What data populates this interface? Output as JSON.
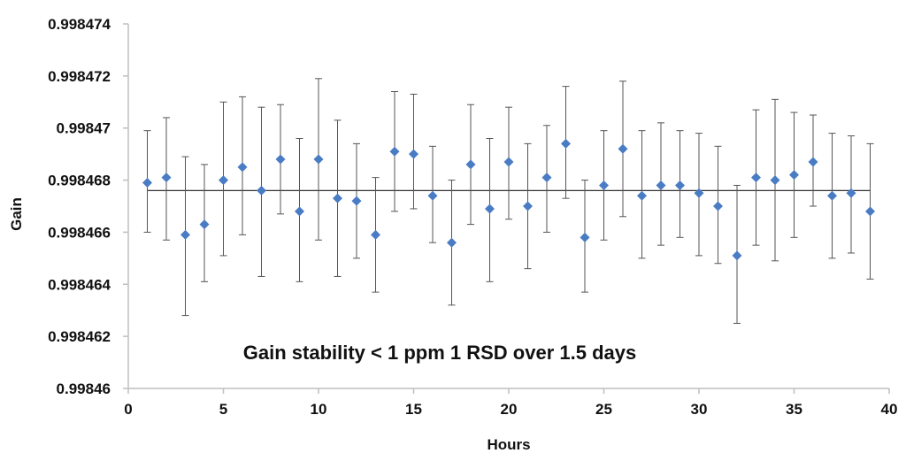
{
  "chart_data": {
    "type": "scatter",
    "title": "",
    "xlabel": "Hours",
    "ylabel": "Gain",
    "xlim": [
      0,
      40
    ],
    "ylim": [
      0.99846,
      0.998474
    ],
    "x_ticks": [
      0,
      5,
      10,
      15,
      20,
      25,
      30,
      35,
      40
    ],
    "y_ticks": [
      0.99846,
      0.998462,
      0.998464,
      0.998466,
      0.998468,
      0.99847,
      0.998472,
      0.998474
    ],
    "x_tick_labels": [
      "0",
      "5",
      "10",
      "15",
      "20",
      "25",
      "30",
      "35",
      "40"
    ],
    "y_tick_labels": [
      "0.99846",
      "0.998462",
      "0.998464",
      "0.998466",
      "0.998468",
      "0.99847",
      "0.998472",
      "0.998474"
    ],
    "grid": false,
    "legend": "none",
    "annotation": "Gain stability < 1 ppm 1 RSD over 1.5 days",
    "mean_line": 0.9984676,
    "colors": {
      "marker": "#4a7cc4",
      "error_bar": "#555555",
      "mean_line": "#333333",
      "axis": "#bfbfbf"
    },
    "series": [
      {
        "x": [
          1,
          2,
          3,
          4,
          5,
          6,
          7,
          8,
          9,
          10,
          11,
          12,
          13,
          14,
          15,
          16,
          17,
          18,
          19,
          20,
          21,
          22,
          23,
          24,
          25,
          26,
          27,
          28,
          29,
          30,
          31,
          32,
          33,
          34,
          35,
          36,
          37,
          38,
          39
        ],
        "y": [
          0.9984679,
          0.9984681,
          0.9984659,
          0.9984663,
          0.998468,
          0.9984685,
          0.9984676,
          0.9984688,
          0.9984668,
          0.9984688,
          0.9984673,
          0.9984672,
          0.9984659,
          0.9984691,
          0.998469,
          0.9984674,
          0.9984656,
          0.9984686,
          0.9984669,
          0.9984687,
          0.998467,
          0.9984681,
          0.9984694,
          0.9984658,
          0.9984678,
          0.9984692,
          0.9984674,
          0.9984678,
          0.9984678,
          0.9984675,
          0.998467,
          0.9984651,
          0.9984681,
          0.998468,
          0.9984682,
          0.9984687,
          0.9984674,
          0.9984675,
          0.9984668
        ],
        "y_low": [
          0.998466,
          0.9984657,
          0.9984628,
          0.9984641,
          0.9984651,
          0.9984659,
          0.9984643,
          0.9984667,
          0.9984641,
          0.9984657,
          0.9984643,
          0.998465,
          0.9984637,
          0.9984668,
          0.9984669,
          0.9984656,
          0.9984632,
          0.9984663,
          0.9984641,
          0.9984665,
          0.9984646,
          0.998466,
          0.9984673,
          0.9984637,
          0.9984657,
          0.9984666,
          0.998465,
          0.9984655,
          0.9984658,
          0.9984651,
          0.9984648,
          0.9984625,
          0.9984655,
          0.9984649,
          0.9984658,
          0.998467,
          0.998465,
          0.9984652,
          0.9984642
        ],
        "y_high": [
          0.9984699,
          0.9984704,
          0.9984689,
          0.9984686,
          0.998471,
          0.9984712,
          0.9984708,
          0.9984709,
          0.9984696,
          0.9984719,
          0.9984703,
          0.9984694,
          0.9984681,
          0.9984714,
          0.9984713,
          0.9984693,
          0.998468,
          0.9984709,
          0.9984696,
          0.9984708,
          0.9984694,
          0.9984701,
          0.9984716,
          0.998468,
          0.9984699,
          0.9984718,
          0.9984699,
          0.9984702,
          0.9984699,
          0.9984698,
          0.9984693,
          0.9984678,
          0.9984707,
          0.9984711,
          0.9984706,
          0.9984705,
          0.9984698,
          0.9984697,
          0.9984694
        ]
      }
    ]
  }
}
